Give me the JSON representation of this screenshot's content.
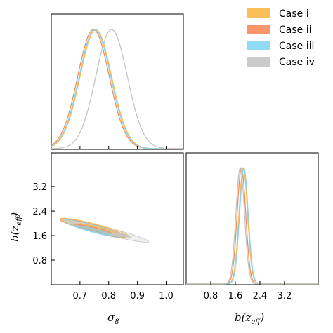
{
  "chart_data": {
    "type": "corner",
    "parameters": [
      {
        "key": "sigma8",
        "label_main": "σ",
        "label_sub": "8"
      },
      {
        "key": "bz",
        "label_main": "b(z",
        "label_sub": "eff",
        "label_end": ")"
      }
    ],
    "legend": {
      "placement": "top-right",
      "entries": [
        {
          "name": "Case i",
          "color": "#fbb845"
        },
        {
          "name": "Case ii",
          "color": "#f78a5a"
        },
        {
          "name": "Case iii",
          "color": "#84d6f2"
        },
        {
          "name": "Case iv",
          "color": "#c4c4c4"
        }
      ]
    },
    "panels": {
      "sigma8_1d": {
        "xlim": [
          0.6,
          1.06
        ],
        "xticks": [
          0.7,
          0.8,
          0.9,
          1.0
        ],
        "series": [
          {
            "name": "Case i",
            "mean": 0.755,
            "sd": 0.055
          },
          {
            "name": "Case ii",
            "mean": 0.747,
            "sd": 0.055
          },
          {
            "name": "Case iii",
            "mean": 0.752,
            "sd": 0.055
          },
          {
            "name": "Case iv",
            "mean": 0.81,
            "sd": 0.055
          }
        ]
      },
      "bz_1d": {
        "xlim": [
          0.0,
          4.3
        ],
        "xticks": [
          0.8,
          1.6,
          2.4,
          3.2
        ],
        "xtick_labels": [
          "0.8",
          "1.6",
          "2.4",
          "3.2"
        ],
        "series": [
          {
            "name": "Case i",
            "mean": 1.86,
            "sd": 0.14
          },
          {
            "name": "Case ii",
            "mean": 1.8,
            "sd": 0.14
          },
          {
            "name": "Case iii",
            "mean": 1.88,
            "sd": 0.14
          },
          {
            "name": "Case iv",
            "mean": 1.76,
            "sd": 0.14
          }
        ]
      },
      "joint_2d": {
        "xlim": [
          0.6,
          1.06
        ],
        "ylim": [
          0.0,
          4.3
        ],
        "xticks": [
          0.7,
          0.8,
          0.9,
          1.0
        ],
        "xtick_labels": [
          "0.7",
          "0.8",
          "0.9",
          "1.0"
        ],
        "yticks": [
          0.8,
          1.6,
          2.4,
          3.2
        ],
        "ytick_labels": [
          "0.8",
          "1.6",
          "2.4",
          "3.2"
        ],
        "series": [
          {
            "name": "Case iv",
            "outer": [
              [
                0.63,
                2.13
              ],
              [
                0.94,
                1.4
              ]
            ],
            "inner": [
              [
                0.7,
                1.9
              ],
              [
                0.88,
                1.55
              ]
            ]
          },
          {
            "name": "Case i",
            "outer": [
              [
                0.63,
                2.15
              ],
              [
                0.87,
                1.58
              ]
            ],
            "inner": [
              [
                0.69,
                1.98
              ],
              [
                0.82,
                1.7
              ]
            ]
          },
          {
            "name": "Case ii",
            "outer": [
              [
                0.63,
                2.13
              ],
              [
                0.86,
                1.56
              ]
            ],
            "inner": [
              [
                0.68,
                1.96
              ],
              [
                0.81,
                1.67
              ]
            ]
          },
          {
            "name": "Case iii",
            "outer": [
              [
                0.64,
                2.1
              ],
              [
                0.86,
                1.54
              ]
            ],
            "inner": [
              [
                0.68,
                1.92
              ],
              [
                0.81,
                1.64
              ]
            ]
          }
        ]
      }
    }
  }
}
